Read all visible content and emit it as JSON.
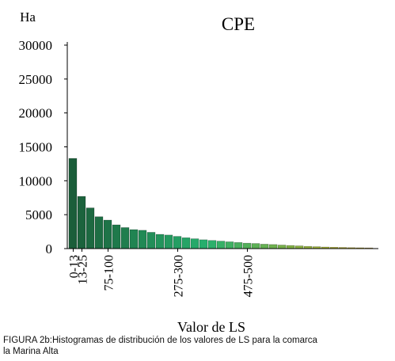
{
  "chart_data": {
    "type": "bar",
    "title": "CPE",
    "ylabel": "Ha",
    "xlabel": "Valor de LS",
    "ylim": [
      0,
      30000
    ],
    "yticks": [
      0,
      5000,
      10000,
      15000,
      20000,
      25000,
      30000
    ],
    "xtick_labels": [
      {
        "bar_index": 0,
        "label": "0-13"
      },
      {
        "bar_index": 1,
        "label": "13-25"
      },
      {
        "bar_index": 4,
        "label": "75-100"
      },
      {
        "bar_index": 12,
        "label": "275-300"
      },
      {
        "bar_index": 20,
        "label": "475-500"
      }
    ],
    "values": [
      13300,
      7700,
      6000,
      4700,
      4200,
      3500,
      3100,
      2800,
      2700,
      2400,
      2100,
      2000,
      1800,
      1600,
      1450,
      1300,
      1200,
      1100,
      1000,
      900,
      800,
      750,
      650,
      600,
      520,
      460,
      400,
      330,
      280,
      230,
      200,
      170,
      140,
      120,
      100
    ]
  },
  "colors": {
    "start": "#1b5e3a",
    "mid": "#27b06e",
    "end": "#d4b020",
    "axis": "#000000"
  },
  "caption": {
    "line1": "FIGURA 2b:Histogramas de distribución de los valores de LS para la comarca",
    "line2": "la Marina Alta"
  }
}
